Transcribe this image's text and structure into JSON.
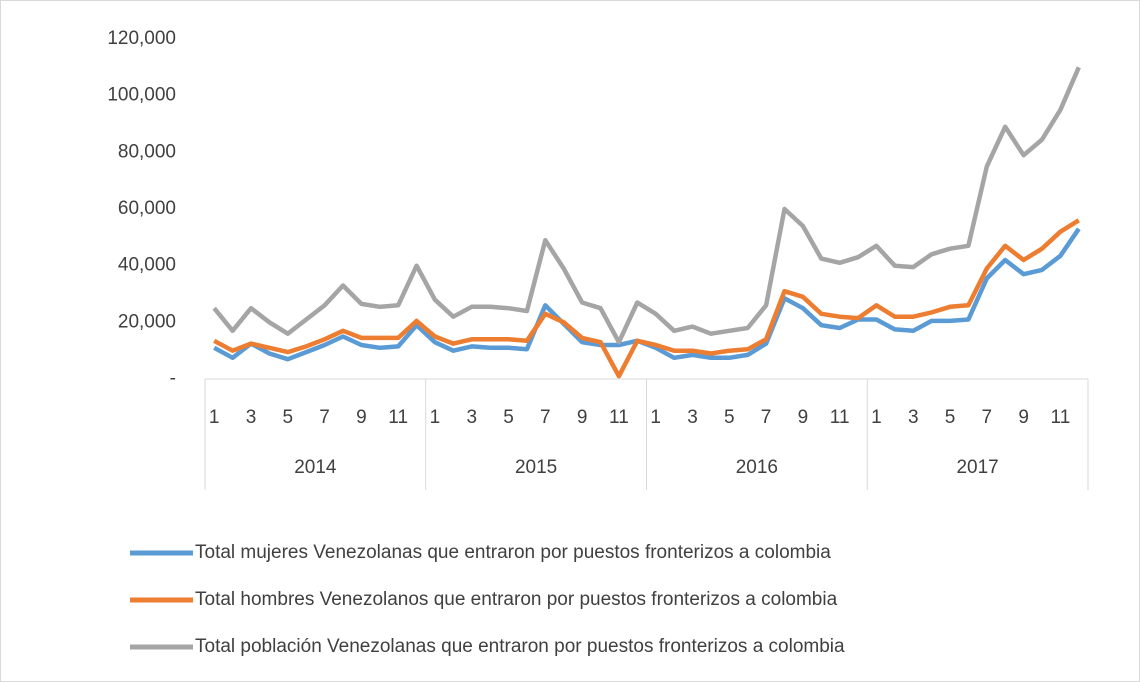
{
  "chart_data": {
    "type": "line",
    "categories": [
      "1",
      null,
      "3",
      null,
      "5",
      null,
      "7",
      null,
      "9",
      null,
      "11",
      null,
      "1",
      null,
      "3",
      null,
      "5",
      null,
      "7",
      null,
      "9",
      null,
      "11",
      null,
      "1",
      null,
      "3",
      null,
      "5",
      null,
      "7",
      null,
      "9",
      null,
      "11",
      null,
      "1",
      null,
      "3",
      null,
      "5",
      null,
      "7",
      null,
      "9",
      null,
      "11",
      null
    ],
    "category_groups": [
      "2014",
      "2015",
      "2016",
      "2017"
    ],
    "series": [
      {
        "name": "Total mujeres Venezolanas que entraron por puestos fronterizos a colombia",
        "color": "#5b9bd5",
        "values": [
          11000,
          7500,
          12500,
          9000,
          7000,
          9500,
          12000,
          15000,
          12000,
          11000,
          11500,
          19000,
          13000,
          10000,
          11500,
          11000,
          11000,
          10500,
          26000,
          19500,
          13000,
          12000,
          12000,
          13500,
          11000,
          7500,
          8500,
          7500,
          7500,
          8500,
          12500,
          28500,
          25000,
          19000,
          18000,
          21000,
          21000,
          17500,
          17000,
          20500,
          20500,
          21000,
          35500,
          42000,
          37000,
          38500,
          43500,
          53000
        ]
      },
      {
        "name": "Total hombres Venezolanos que entraron por puestos fronterizos a colombia",
        "color": "#ed7d31",
        "values": [
          13500,
          10000,
          12500,
          11000,
          9500,
          11500,
          14000,
          17000,
          14500,
          14500,
          14500,
          20500,
          15000,
          12500,
          14000,
          14000,
          14000,
          13500,
          23000,
          20000,
          14500,
          13000,
          1000,
          13500,
          12000,
          10000,
          10000,
          9000,
          10000,
          10500,
          14000,
          31000,
          29000,
          23000,
          22000,
          21500,
          26000,
          22000,
          22000,
          23500,
          25500,
          26000,
          39000,
          47000,
          42000,
          46000,
          52000,
          56000
        ]
      },
      {
        "name": "Total población Venezolanas que entraron por puestos fronterizos a colombia",
        "color": "#a5a5a5",
        "values": [
          25000,
          17000,
          25000,
          20000,
          16000,
          21000,
          26000,
          33000,
          26500,
          25500,
          26000,
          40000,
          28000,
          22000,
          25500,
          25500,
          25000,
          24000,
          49000,
          39000,
          27000,
          25000,
          13000,
          27000,
          23000,
          17000,
          18500,
          16000,
          17000,
          18000,
          26000,
          60000,
          54000,
          42500,
          41000,
          43000,
          47000,
          40000,
          39500,
          44000,
          46000,
          47000,
          75000,
          89000,
          79000,
          84500,
          95000,
          110000
        ]
      }
    ],
    "ylim": [
      0,
      120000
    ],
    "yticks": [
      {
        "value": 0,
        "label": "-"
      },
      {
        "value": 20000,
        "label": "20,000"
      },
      {
        "value": 40000,
        "label": "40,000"
      },
      {
        "value": 60000,
        "label": "60,000"
      },
      {
        "value": 80000,
        "label": "80,000"
      },
      {
        "value": 100000,
        "label": "100,000"
      },
      {
        "value": 120000,
        "label": "120,000"
      }
    ],
    "legend": "bottom"
  }
}
